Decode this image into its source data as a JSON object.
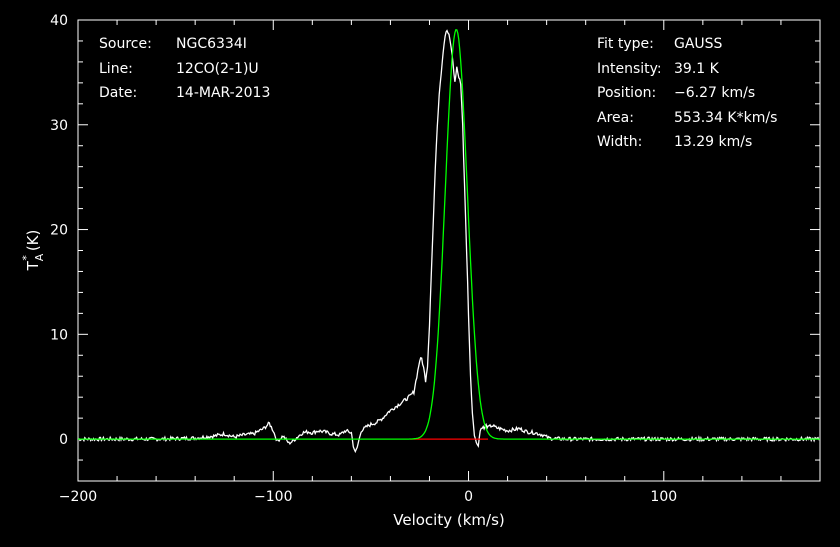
{
  "chart_data": {
    "type": "line",
    "xlabel": "Velocity (km/s)",
    "ylabel": "T_A* (K)",
    "xlim": [
      -200,
      180
    ],
    "ylim": [
      -4,
      40
    ],
    "x_ticks": [
      -200,
      -100,
      0,
      100
    ],
    "y_ticks": [
      0,
      10,
      20,
      30,
      40
    ],
    "x_tick_labels": [
      "−200",
      "−100",
      "0",
      "100"
    ],
    "y_tick_labels": [
      "0",
      "10",
      "20",
      "30",
      "40"
    ],
    "colors": {
      "background": "#000000",
      "axes": "#ffffff",
      "data": "#ffffff",
      "fit": "#00ff00",
      "baseline": "#ff0000"
    },
    "info_left": [
      {
        "key": "Source:",
        "value": "NGC6334I"
      },
      {
        "key": "Line:",
        "value": "12CO(2-1)U"
      },
      {
        "key": "Date:",
        "value": "14-MAR-2013"
      }
    ],
    "info_right": [
      {
        "key": "Fit type:",
        "value": "GAUSS"
      },
      {
        "key": "Intensity:",
        "value": "39.1 K"
      },
      {
        "key": "Position:",
        "value": "−6.27 km/s"
      },
      {
        "key": "Area:",
        "value": "553.34 K*km/s"
      },
      {
        "key": "Width:",
        "value": "13.29 km/s"
      }
    ],
    "series": [
      {
        "type": "spectrum",
        "x": [
          -200,
          -180,
          -160,
          -140,
          -130,
          -125,
          -120,
          -115,
          -110,
          -105,
          -102,
          -100,
          -98,
          -95,
          -92,
          -90,
          -87,
          -85,
          -82,
          -80,
          -77,
          -74,
          -70,
          -66,
          -63,
          -60,
          -59,
          -58,
          -57,
          -55,
          -52,
          -50,
          -47,
          -44,
          -41,
          -38,
          -35,
          -32,
          -30,
          -28,
          -26,
          -25,
          -24,
          -23,
          -22,
          -21,
          -20,
          -19,
          -18,
          -17,
          -16,
          -15,
          -14,
          -13,
          -12,
          -11,
          -10,
          -9,
          -8,
          -7,
          -6,
          -5,
          -4,
          -3,
          -2,
          -1,
          0,
          1,
          2,
          3,
          4,
          5,
          6,
          7,
          8,
          9,
          10,
          12,
          14,
          16,
          18,
          20,
          23,
          26,
          30,
          34,
          38,
          41,
          44,
          50,
          60,
          80,
          100,
          120,
          140,
          160,
          180
        ],
        "y": [
          0,
          0,
          0,
          0.1,
          0.3,
          0.5,
          0.2,
          0.4,
          0.5,
          1.0,
          1.5,
          0.8,
          -0.2,
          0.3,
          -0.4,
          -0.2,
          0.3,
          0.6,
          0.7,
          0.6,
          0.8,
          0.7,
          0.5,
          0.4,
          0.8,
          0.6,
          -0.6,
          -1.3,
          -0.8,
          0.8,
          1.2,
          1.4,
          1.6,
          2.0,
          2.6,
          3.0,
          3.4,
          3.8,
          4.1,
          4.5,
          6.5,
          7.5,
          7.7,
          6.8,
          5.6,
          7.0,
          11.0,
          16.0,
          21.0,
          26.0,
          30.0,
          33.0,
          35.0,
          37.0,
          38.5,
          39.0,
          38.5,
          37.5,
          36.0,
          34.0,
          35.5,
          34.5,
          34.0,
          30.0,
          24.0,
          18.0,
          12.0,
          6.0,
          2.5,
          0.5,
          -0.4,
          -0.5,
          0.8,
          1.2,
          1.0,
          1.3,
          1.1,
          1.3,
          1.1,
          1.0,
          0.9,
          0.8,
          0.9,
          1.0,
          0.7,
          0.6,
          0.4,
          0.1,
          0.05,
          0,
          0,
          0,
          0,
          0,
          0,
          0,
          0
        ]
      },
      {
        "type": "gaussian_fit",
        "amplitude": 39.1,
        "center": -6.27,
        "fwhm": 13.29
      },
      {
        "type": "baseline",
        "x": [
          -30,
          10
        ],
        "y": [
          0,
          0
        ]
      }
    ]
  }
}
